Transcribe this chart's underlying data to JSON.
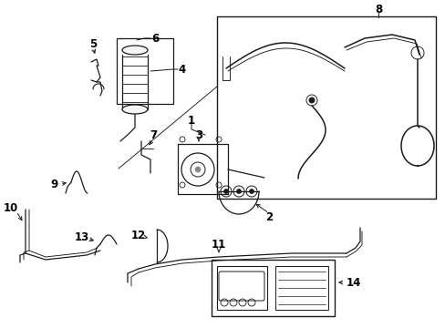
{
  "bg_color": "#ffffff",
  "line_color": "#1a1a1a",
  "label_color": "#000000",
  "fig_width": 4.89,
  "fig_height": 3.6,
  "dpi": 100,
  "label_fontsize": 8.5,
  "lw_main": 1.1,
  "lw_thin": 0.65,
  "lw_label_line": 0.7
}
